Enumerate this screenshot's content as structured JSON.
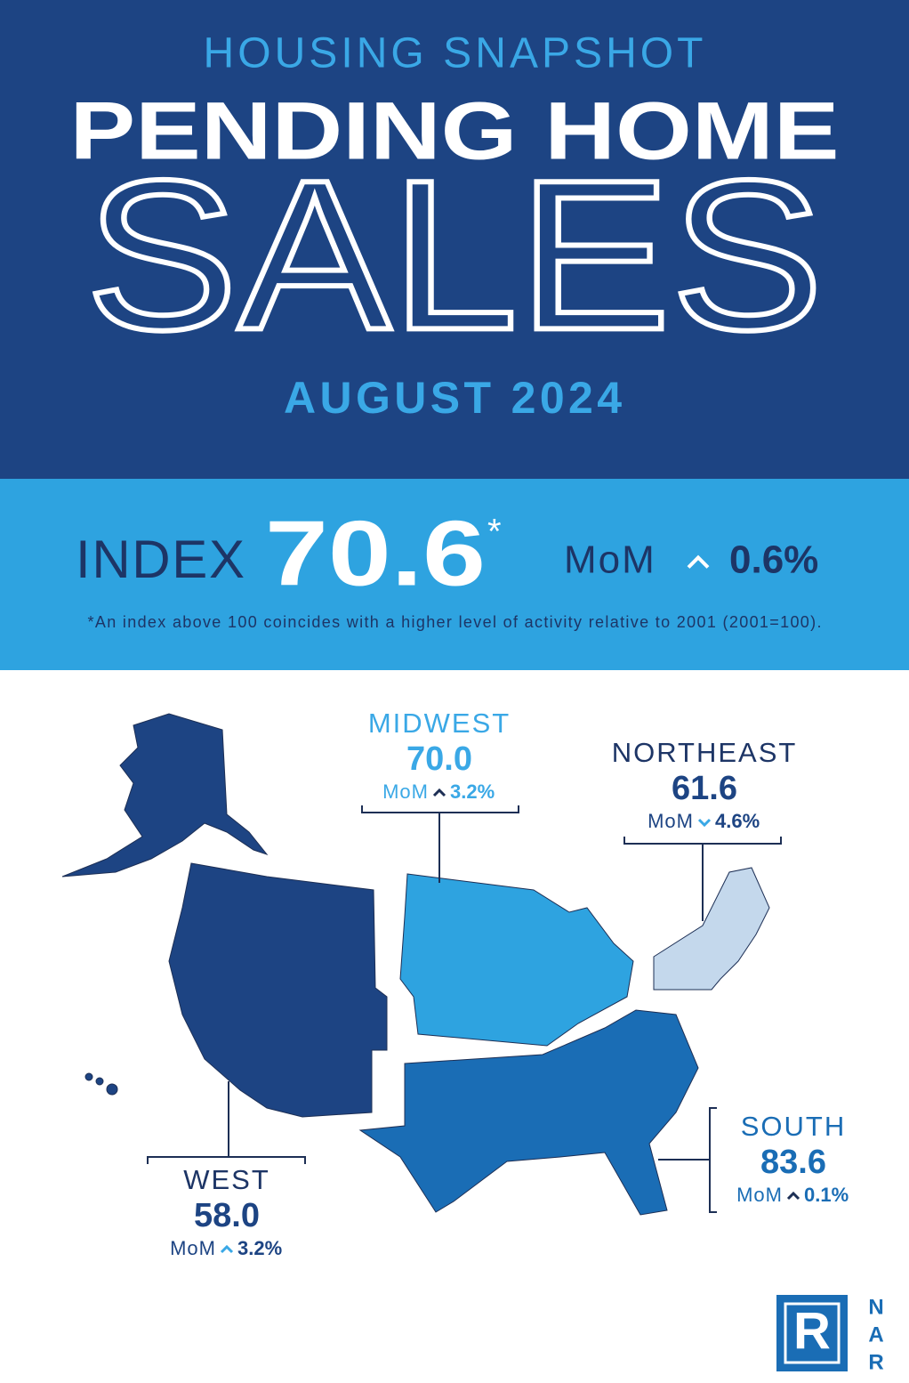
{
  "header": {
    "kicker": "HOUSING SNAPSHOT",
    "title": "PENDING HOME",
    "title_large": "SALES",
    "period": "AUGUST 2024"
  },
  "index": {
    "label": "INDEX",
    "value": "70.6",
    "asterisk": "*",
    "change_label": "MoM",
    "direction": "up",
    "change": "0.6%",
    "footnote": "*An index above 100 coincides with a higher level of activity relative to 2001 (2001=100)."
  },
  "regions": [
    {
      "name": "MIDWEST",
      "value": "70.0",
      "change_label": "MoM",
      "direction": "up",
      "change": "3.2%"
    },
    {
      "name": "NORTHEAST",
      "value": "61.6",
      "change_label": "MoM",
      "direction": "down",
      "change": "4.6%"
    },
    {
      "name": "WEST",
      "value": "58.0",
      "change_label": "MoM",
      "direction": "up",
      "change": "3.2%"
    },
    {
      "name": "SOUTH",
      "value": "83.6",
      "change_label": "MoM",
      "direction": "up",
      "change": "0.1%"
    }
  ],
  "logo": {
    "mark": "R",
    "letters": [
      "N",
      "A",
      "R"
    ]
  }
}
